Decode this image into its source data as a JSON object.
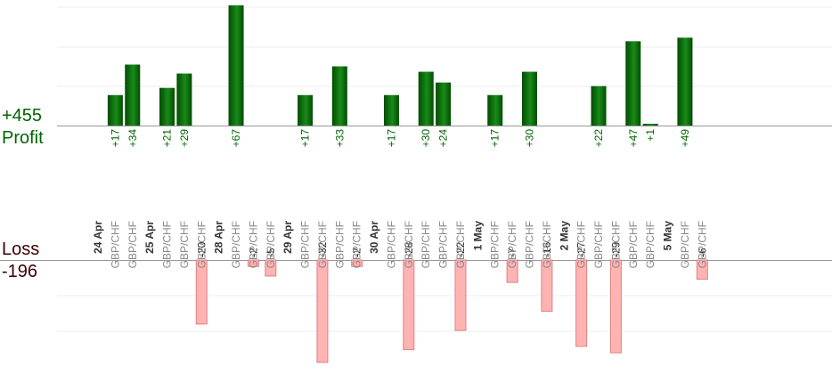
{
  "summary": {
    "profit_total": "+455",
    "profit_label": "Profit",
    "loss_label": "Loss",
    "loss_total": "-196"
  },
  "colors": {
    "profit_bar_dark": "#004d00",
    "profit_bar_light": "#1a8a1a",
    "profit_text": "#006400",
    "loss_bar_fill": "#ffb3b3",
    "loss_bar_stroke": "#e08080",
    "loss_text": "#222222",
    "date_text": "#333333",
    "pair_text": "#888888",
    "axis": "#999999",
    "grid": "#eeeeee"
  },
  "chart_data": {
    "type": "bar",
    "xlabel": "",
    "ylabel": "",
    "profit_ylim": [
      0,
      70
    ],
    "loss_ylim": [
      -32,
      0
    ],
    "grid": true,
    "categories": [
      {
        "kind": "date",
        "label": "24 Apr"
      },
      {
        "kind": "pair",
        "label": "GBP/CHF",
        "profit": 17
      },
      {
        "kind": "pair",
        "label": "GBP/CHF",
        "profit": 34
      },
      {
        "kind": "date",
        "label": "25 Apr"
      },
      {
        "kind": "pair",
        "label": "GBP/CHF",
        "profit": 21
      },
      {
        "kind": "pair",
        "label": "GBP/CHF",
        "profit": 29
      },
      {
        "kind": "pair",
        "label": "GBP/CHF",
        "loss": -20
      },
      {
        "kind": "date",
        "label": "28 Apr"
      },
      {
        "kind": "pair",
        "label": "GBP/CHF",
        "profit": 67
      },
      {
        "kind": "pair",
        "label": "GBP/CHF",
        "loss": -2
      },
      {
        "kind": "pair",
        "label": "GBP/CHF",
        "loss": -5
      },
      {
        "kind": "date",
        "label": "29 Apr"
      },
      {
        "kind": "pair",
        "label": "GBP/CHF",
        "profit": 17
      },
      {
        "kind": "pair",
        "label": "GBP/CHF",
        "loss": -32
      },
      {
        "kind": "pair",
        "label": "GBP/CHF",
        "profit": 33
      },
      {
        "kind": "pair",
        "label": "GBP/CHF",
        "loss": -2
      },
      {
        "kind": "date",
        "label": "30 Apr"
      },
      {
        "kind": "pair",
        "label": "GBP/CHF",
        "profit": 17
      },
      {
        "kind": "pair",
        "label": "GBP/CHF",
        "loss": -28
      },
      {
        "kind": "pair",
        "label": "GBP/CHF",
        "profit": 30
      },
      {
        "kind": "pair",
        "label": "GBP/CHF",
        "profit": 24
      },
      {
        "kind": "pair",
        "label": "GBP/CHF",
        "loss": -22
      },
      {
        "kind": "date",
        "label": "1 May"
      },
      {
        "kind": "pair",
        "label": "GBP/CHF",
        "profit": 17
      },
      {
        "kind": "pair",
        "label": "GBP/CHF",
        "loss": -7
      },
      {
        "kind": "pair",
        "label": "GBP/CHF",
        "profit": 30
      },
      {
        "kind": "pair",
        "label": "GBP/CHF",
        "loss": -16
      },
      {
        "kind": "date",
        "label": "2 May"
      },
      {
        "kind": "pair",
        "label": "GBP/CHF",
        "loss": -27
      },
      {
        "kind": "pair",
        "label": "GBP/CHF",
        "profit": 22
      },
      {
        "kind": "pair",
        "label": "GBP/CHF",
        "loss": -29
      },
      {
        "kind": "pair",
        "label": "GBP/CHF",
        "profit": 47
      },
      {
        "kind": "pair",
        "label": "GBP/CHF",
        "profit": 1
      },
      {
        "kind": "date",
        "label": "5 May"
      },
      {
        "kind": "pair",
        "label": "GBP/CHF",
        "profit": 49
      },
      {
        "kind": "pair",
        "label": "GBP/CHF",
        "loss": -6
      }
    ]
  }
}
